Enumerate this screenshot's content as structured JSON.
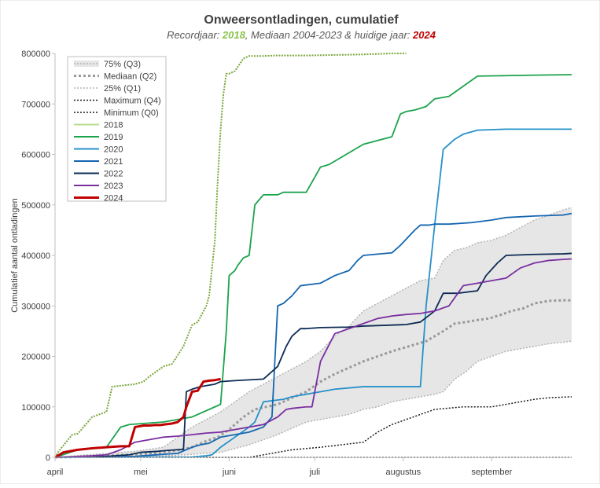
{
  "chart_data": {
    "type": "line",
    "title": "Onweersontladingen, cumulatief",
    "subtitle": {
      "part1": "Recordjaar: ",
      "record_year": "2018",
      "part2": ", Mediaan 2004-2023 & huidige jaar: ",
      "current_year": "2024"
    },
    "ylabel": "Cumulatief aantal ontladingen",
    "xlabel": "",
    "ylim": [
      0,
      800000
    ],
    "y_ticks": [
      "0",
      "100000",
      "200000",
      "300000",
      "400000",
      "500000",
      "600000",
      "700000",
      "800000"
    ],
    "y_tick_values": [
      0,
      100000,
      200000,
      300000,
      400000,
      500000,
      600000,
      700000,
      800000
    ],
    "x_unit": "day of year",
    "xlim": [
      92,
      273
    ],
    "x_ticks": [
      "april",
      "mei",
      "juni",
      "juli",
      "augustus",
      "september"
    ],
    "x_tick_values": [
      92,
      122,
      153,
      183,
      214,
      245
    ],
    "grid": "none",
    "legend_position": "top-left",
    "band": {
      "name_upper": "75% (Q3)",
      "name_lower": "25% (Q1)",
      "color": "#e6e6e6",
      "edge_color": "#b3b3b3"
    },
    "series": [
      {
        "name": "Mediaan (Q2)",
        "color": "#999999",
        "style": "median",
        "x": [
          92,
          104,
          110,
          120,
          128,
          135,
          140,
          144,
          149,
          153,
          158,
          162,
          170,
          175,
          180,
          185,
          190,
          196,
          200,
          205,
          210,
          216,
          222,
          228,
          232,
          236,
          240,
          244,
          248,
          252,
          256,
          260,
          265,
          270,
          273
        ],
        "y": [
          0,
          1000,
          3000,
          6000,
          9000,
          14000,
          20000,
          30000,
          40000,
          55000,
          80000,
          95000,
          105000,
          118000,
          130000,
          150000,
          165000,
          180000,
          190000,
          200000,
          210000,
          220000,
          230000,
          250000,
          265000,
          268000,
          272000,
          275000,
          282000,
          290000,
          295000,
          305000,
          310000,
          311000,
          311000
        ]
      },
      {
        "name": "Maximum (Q4)",
        "color": "#1a1a1a",
        "style": "dotted",
        "x": [
          92,
          160,
          165,
          170,
          175,
          185,
          200,
          205,
          210,
          215,
          220,
          225,
          235,
          245,
          255,
          260,
          265,
          273
        ],
        "y": [
          0,
          0,
          5000,
          10000,
          15000,
          20000,
          30000,
          50000,
          65000,
          75000,
          85000,
          95000,
          100000,
          100000,
          110000,
          115000,
          118000,
          120000
        ]
      },
      {
        "name": "Minimum (Q0)",
        "color": "#1a1a1a",
        "style": "dotted",
        "x": [
          92,
          273
        ],
        "y": [
          0,
          0
        ]
      },
      {
        "name": "2018",
        "color": "#7aa63a",
        "style": "record",
        "x": [
          92,
          93,
          98,
          100,
          105,
          110,
          112,
          115,
          120,
          123,
          125,
          130,
          133,
          137,
          140,
          142,
          145,
          146,
          148,
          149,
          150,
          151,
          152,
          153,
          155,
          158,
          160,
          165,
          170,
          180,
          190,
          200,
          210,
          215
        ],
        "y": [
          0,
          10000,
          45000,
          47000,
          80000,
          90000,
          140000,
          142000,
          145000,
          150000,
          160000,
          180000,
          185000,
          220000,
          262000,
          268000,
          300000,
          320000,
          430000,
          550000,
          650000,
          720000,
          760000,
          760000,
          765000,
          790000,
          795000,
          795000,
          796000,
          796000,
          797000,
          798000,
          800000,
          800000
        ]
      },
      {
        "name": "2019",
        "color": "#1ca34c",
        "style": "solid",
        "x": [
          92,
          100,
          110,
          115,
          118,
          130,
          140,
          148,
          150,
          152,
          153,
          155,
          156,
          158,
          160,
          162,
          165,
          170,
          172,
          180,
          185,
          188,
          200,
          210,
          213,
          215,
          218,
          222,
          225,
          230,
          240,
          250,
          260,
          273
        ],
        "y": [
          0,
          15000,
          20000,
          60000,
          65000,
          70000,
          80000,
          100000,
          105000,
          250000,
          360000,
          370000,
          380000,
          395000,
          400000,
          500000,
          520000,
          520000,
          525000,
          525000,
          575000,
          580000,
          620000,
          635000,
          680000,
          685000,
          688000,
          695000,
          710000,
          715000,
          755000,
          756000,
          757000,
          758000
        ]
      },
      {
        "name": "2020",
        "color": "#2591c9",
        "style": "solid",
        "x": [
          92,
          140,
          145,
          147,
          150,
          155,
          160,
          162,
          165,
          172,
          175,
          180,
          185,
          190,
          200,
          210,
          220,
          222,
          225,
          227,
          228,
          230,
          232,
          235,
          240,
          250,
          260,
          273
        ],
        "y": [
          0,
          1000,
          3000,
          5000,
          20000,
          40000,
          60000,
          70000,
          110000,
          115000,
          120000,
          125000,
          130000,
          135000,
          140000,
          140000,
          140000,
          300000,
          460000,
          560000,
          610000,
          620000,
          630000,
          640000,
          648000,
          650000,
          650000,
          650000
        ]
      },
      {
        "name": "2021",
        "color": "#1566b0",
        "style": "solid",
        "x": [
          92,
          120,
          125,
          130,
          135,
          140,
          143,
          146,
          150,
          155,
          160,
          165,
          168,
          170,
          172,
          175,
          178,
          185,
          190,
          195,
          198,
          200,
          210,
          213,
          218,
          220,
          223,
          225,
          230,
          238,
          245,
          250,
          260,
          270,
          273
        ],
        "y": [
          0,
          2000,
          4000,
          6000,
          8000,
          20000,
          25000,
          28000,
          40000,
          45000,
          50000,
          60000,
          80000,
          300000,
          305000,
          320000,
          340000,
          345000,
          360000,
          370000,
          390000,
          400000,
          405000,
          420000,
          450000,
          460000,
          460000,
          462000,
          462000,
          465000,
          470000,
          475000,
          478000,
          480000,
          483000
        ]
      },
      {
        "name": "2022",
        "color": "#0d2b56",
        "style": "solid",
        "x": [
          92,
          110,
          118,
          122,
          128,
          132,
          137,
          138,
          140,
          143,
          148,
          150,
          155,
          165,
          168,
          170,
          173,
          175,
          178,
          180,
          185,
          195,
          200,
          210,
          215,
          220,
          225,
          228,
          233,
          240,
          243,
          247,
          250,
          260,
          270,
          273
        ],
        "y": [
          0,
          2000,
          5000,
          10000,
          12000,
          14000,
          16000,
          130000,
          135000,
          140000,
          145000,
          150000,
          152000,
          155000,
          170000,
          180000,
          220000,
          240000,
          255000,
          255000,
          257000,
          258000,
          260000,
          262000,
          263000,
          268000,
          290000,
          325000,
          325000,
          330000,
          360000,
          385000,
          400000,
          402000,
          403000,
          404000
        ]
      },
      {
        "name": "2023",
        "color": "#7a2fa0",
        "style": "solid",
        "x": [
          92,
          105,
          110,
          115,
          120,
          125,
          130,
          135,
          140,
          145,
          150,
          155,
          160,
          165,
          170,
          173,
          175,
          180,
          182,
          185,
          190,
          195,
          200,
          205,
          210,
          215,
          220,
          225,
          230,
          235,
          240,
          245,
          250,
          255,
          260,
          265,
          270,
          273
        ],
        "y": [
          0,
          3000,
          5000,
          15000,
          30000,
          35000,
          40000,
          42000,
          45000,
          48000,
          50000,
          55000,
          60000,
          65000,
          80000,
          95000,
          97000,
          100000,
          100000,
          190000,
          245000,
          255000,
          265000,
          275000,
          280000,
          283000,
          285000,
          290000,
          300000,
          340000,
          345000,
          350000,
          355000,
          375000,
          385000,
          390000,
          392000,
          393000
        ]
      },
      {
        "name": "2024",
        "color": "#c00000",
        "style": "bold",
        "x": [
          92,
          95,
          100,
          105,
          110,
          115,
          118,
          120,
          122,
          123,
          125,
          127,
          129,
          130,
          133,
          135,
          137,
          138,
          140,
          142,
          144,
          146,
          148,
          150
        ],
        "y": [
          0,
          10000,
          15000,
          18000,
          20000,
          22000,
          22000,
          60000,
          62000,
          63000,
          63000,
          64000,
          64000,
          65000,
          67000,
          70000,
          80000,
          100000,
          130000,
          132000,
          150000,
          152000,
          153000,
          155000
        ]
      }
    ],
    "legend_entries": [
      {
        "label": "75% (Q3)",
        "kind": "band-upper"
      },
      {
        "label": "Mediaan (Q2)",
        "kind": "median"
      },
      {
        "label": "25% (Q1)",
        "kind": "band-lower"
      },
      {
        "label": "Maximum (Q4)",
        "kind": "dotted"
      },
      {
        "label": "Minimum (Q0)",
        "kind": "dotted"
      },
      {
        "label": "2018",
        "kind": "light-green"
      },
      {
        "label": "2019",
        "kind": "solid"
      },
      {
        "label": "2020",
        "kind": "solid"
      },
      {
        "label": "2021",
        "kind": "solid"
      },
      {
        "label": "2022",
        "kind": "solid"
      },
      {
        "label": "2023",
        "kind": "solid"
      },
      {
        "label": "2024",
        "kind": "bold"
      }
    ],
    "band_data": {
      "x": [
        92,
        120,
        130,
        140,
        150,
        160,
        170,
        180,
        185,
        190,
        195,
        200,
        205,
        210,
        215,
        220,
        225,
        228,
        232,
        236,
        240,
        245,
        250,
        255,
        260,
        265,
        270,
        273
      ],
      "upper": [
        0,
        12000,
        20000,
        60000,
        90000,
        130000,
        160000,
        190000,
        210000,
        240000,
        260000,
        290000,
        305000,
        320000,
        335000,
        350000,
        355000,
        390000,
        410000,
        415000,
        425000,
        430000,
        440000,
        455000,
        470000,
        480000,
        490000,
        495000
      ],
      "lower": [
        0,
        2000,
        3000,
        6000,
        10000,
        25000,
        45000,
        70000,
        75000,
        80000,
        85000,
        95000,
        100000,
        110000,
        115000,
        120000,
        125000,
        130000,
        155000,
        170000,
        190000,
        200000,
        210000,
        215000,
        220000,
        225000,
        228000,
        230000
      ]
    }
  }
}
